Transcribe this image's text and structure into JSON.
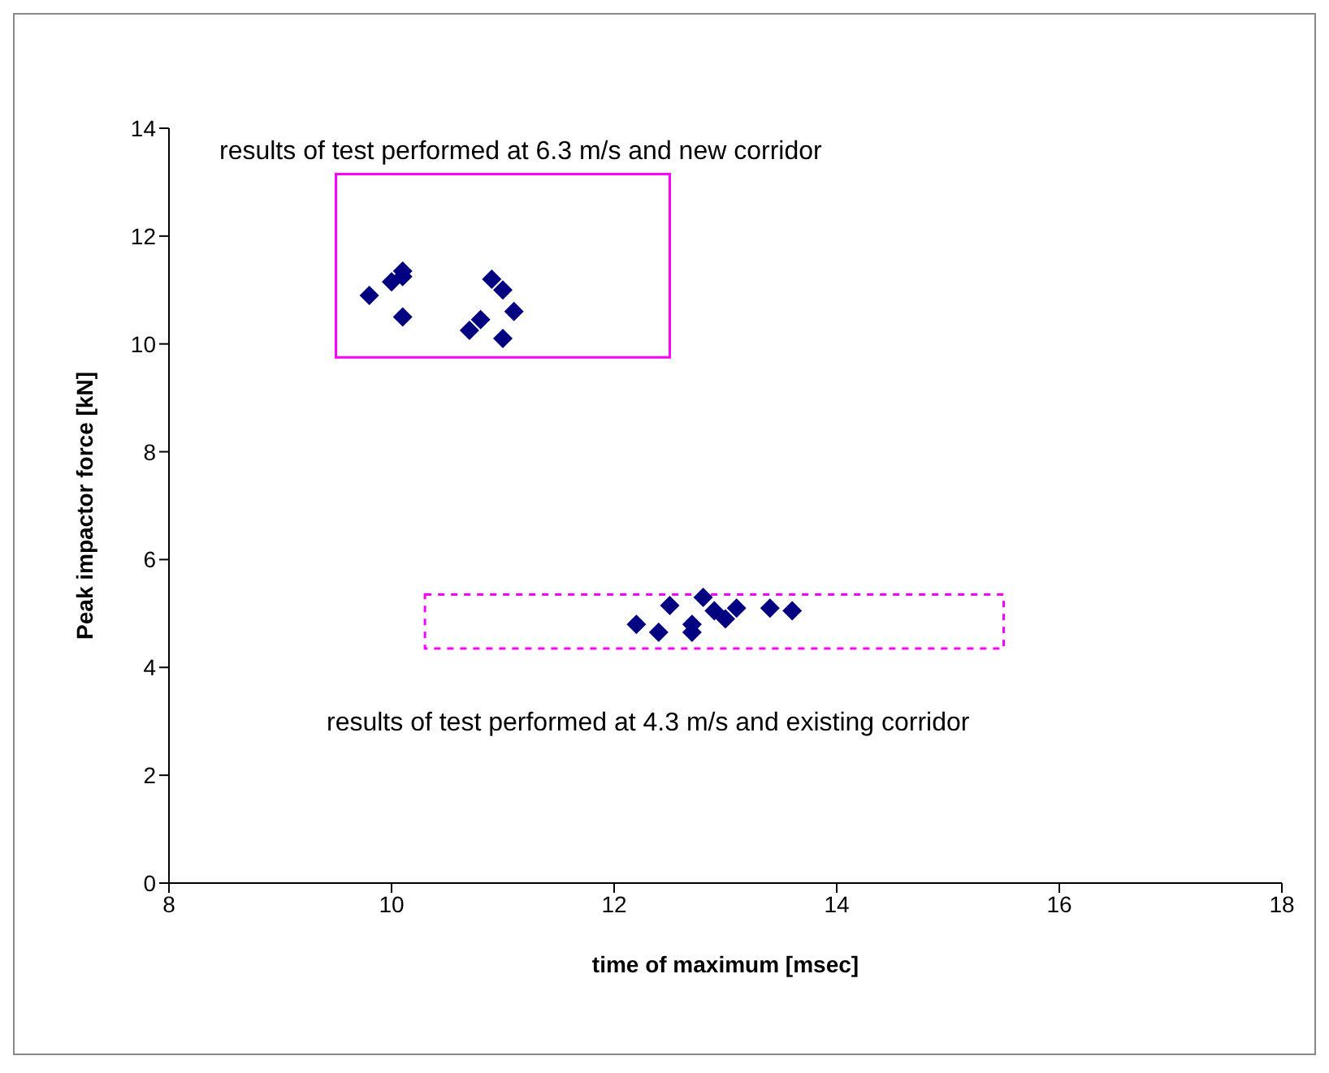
{
  "chart_data": {
    "type": "scatter",
    "xlabel": "time of maximum [msec]",
    "ylabel": "Peak impactor force [kN]",
    "annotations": [
      "results of test performed at 6.3 m/s and new corridor",
      "results of test performed at 4.3 m/s and existing corridor"
    ],
    "series": [
      {
        "color": "#000080",
        "x": [
          9.8,
          10.0,
          10.1,
          10.1,
          10.1,
          10.9,
          11.0,
          11.1,
          10.8,
          10.7,
          11.0,
          12.2,
          12.4,
          12.5,
          12.8,
          12.7,
          12.7,
          12.9,
          13.0,
          13.1,
          13.4,
          13.6
        ],
        "values": [
          10.9,
          11.15,
          11.35,
          11.25,
          10.5,
          11.2,
          11.0,
          10.6,
          10.45,
          10.25,
          10.1,
          4.8,
          4.65,
          5.15,
          5.3,
          4.8,
          4.65,
          5.05,
          4.9,
          5.1,
          5.1,
          5.05
        ]
      }
    ],
    "xlim": [
      8,
      18
    ],
    "xticks": [
      8,
      10,
      12,
      14,
      16,
      18
    ],
    "ylim": [
      0,
      14
    ],
    "yticks": [
      0,
      2,
      4,
      6,
      8,
      10,
      12,
      14
    ],
    "grid": false,
    "legend": false,
    "marker": "diamond"
  }
}
